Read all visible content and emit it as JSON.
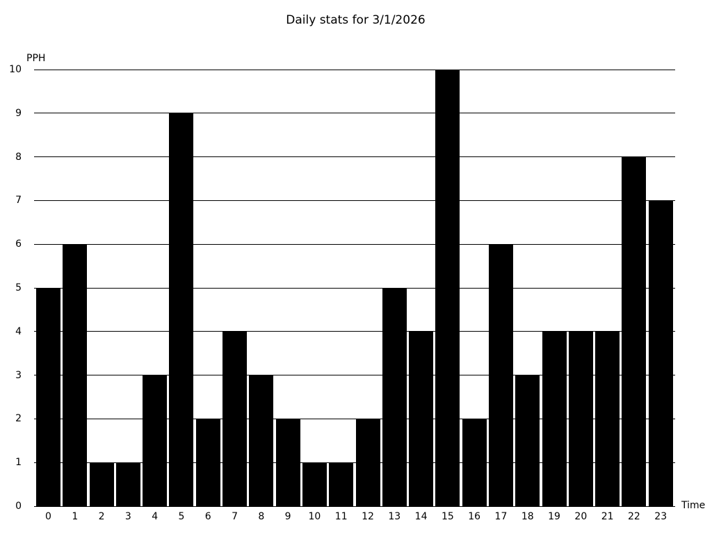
{
  "title": "Daily stats for 3/1/2026",
  "chart_data": {
    "type": "bar",
    "title": "Daily stats for 3/1/2026",
    "xlabel": "Time",
    "ylabel": "PPH",
    "categories": [
      "0",
      "1",
      "2",
      "3",
      "4",
      "5",
      "6",
      "7",
      "8",
      "9",
      "10",
      "11",
      "12",
      "13",
      "14",
      "15",
      "16",
      "17",
      "18",
      "19",
      "20",
      "21",
      "22",
      "23"
    ],
    "values": [
      5,
      6,
      1,
      1,
      3,
      9,
      2,
      4,
      3,
      2,
      1,
      1,
      2,
      5,
      4,
      10,
      2,
      6,
      3,
      4,
      4,
      4,
      8,
      7
    ],
    "yticks": [
      0,
      1,
      2,
      3,
      4,
      5,
      6,
      7,
      8,
      9,
      10
    ],
    "ylim": [
      0,
      10
    ],
    "grid": true,
    "legend": "none",
    "bar_color": "#000000",
    "gridline_color": "#000000",
    "background_color": "#ffffff",
    "text_color": "#000000"
  }
}
